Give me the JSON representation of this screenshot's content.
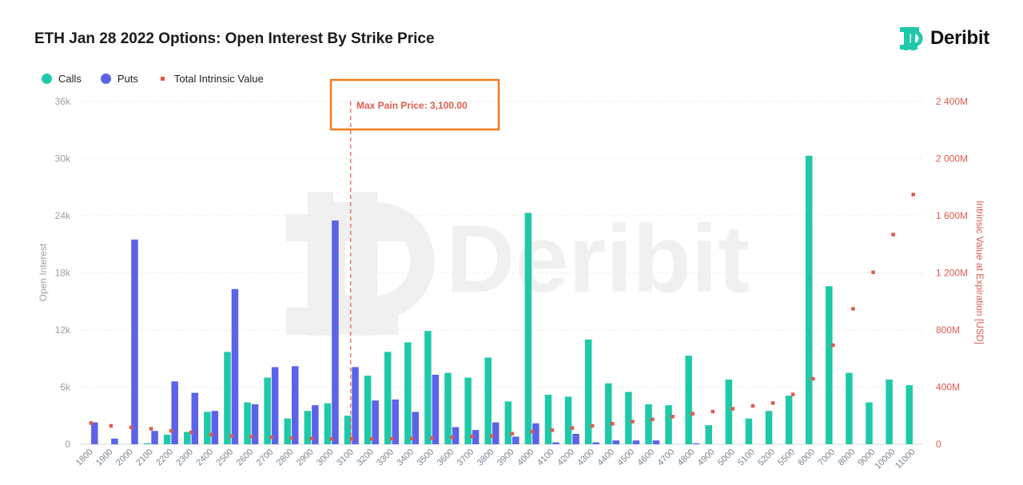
{
  "title": "ETH Jan 28 2022 Options: Open Interest By Strike Price",
  "logo": {
    "text": "Deribit",
    "icon": "deribit-logo-icon"
  },
  "watermark": "Deribit",
  "annotation": {
    "text": "Max Pain Price: 3,100.00",
    "strike": "3100"
  },
  "colors": {
    "calls": "#1ec9a8",
    "puts": "#5b63e8",
    "intrinsic": "#e05a4e",
    "annotation_box": "#f07a20",
    "axis_text": "#9aa0a6",
    "right_axis_text": "#e05a4e"
  },
  "chart_data": {
    "type": "bar",
    "categories": [
      "1800",
      "1900",
      "2000",
      "2100",
      "2200",
      "2300",
      "2400",
      "2500",
      "2600",
      "2700",
      "2800",
      "2900",
      "3000",
      "3100",
      "3200",
      "3300",
      "3400",
      "3500",
      "3600",
      "3700",
      "3800",
      "3900",
      "4000",
      "4100",
      "4200",
      "4300",
      "4400",
      "4500",
      "4600",
      "4700",
      "4800",
      "4900",
      "5000",
      "5100",
      "5200",
      "5500",
      "6000",
      "7000",
      "8000",
      "9000",
      "10000",
      "11000"
    ],
    "series": [
      {
        "name": "Calls",
        "axis": "left",
        "values": [
          0,
          0,
          0,
          100,
          1000,
          1300,
          3400,
          9700,
          4400,
          7000,
          2700,
          3500,
          4300,
          3000,
          7200,
          9700,
          10700,
          11900,
          7500,
          7000,
          9100,
          4500,
          24300,
          5200,
          5000,
          11000,
          6400,
          5500,
          4200,
          4100,
          9300,
          2000,
          6800,
          2700,
          3500,
          5100,
          30300,
          16600,
          7500,
          4400,
          6800,
          6200
        ]
      },
      {
        "name": "Puts",
        "axis": "left",
        "values": [
          2300,
          600,
          21500,
          1400,
          6600,
          5400,
          3500,
          16300,
          4200,
          8100,
          8200,
          4100,
          23500,
          8100,
          4600,
          4700,
          3400,
          7300,
          1800,
          1500,
          2300,
          800,
          2200,
          200,
          1100,
          200,
          400,
          400,
          400,
          0,
          100,
          0,
          0,
          0,
          0,
          0,
          0,
          0,
          0,
          0,
          0,
          0
        ]
      },
      {
        "name": "Total Intrinsic Value",
        "axis": "right",
        "marker": "square",
        "values": [
          150,
          130,
          120,
          110,
          95,
          85,
          70,
          60,
          55,
          50,
          45,
          42,
          40,
          40,
          40,
          40,
          42,
          45,
          50,
          55,
          60,
          75,
          90,
          100,
          115,
          130,
          145,
          160,
          175,
          195,
          215,
          230,
          250,
          270,
          290,
          350,
          460,
          695,
          950,
          1205,
          1470,
          1750
        ]
      }
    ],
    "left_axis": {
      "label": "Open Interest",
      "min": 0,
      "max": 36000,
      "ticks": [
        0,
        6000,
        12000,
        18000,
        24000,
        30000,
        36000
      ],
      "tick_labels": [
        "0",
        "6k",
        "12k",
        "18k",
        "24k",
        "30k",
        "36k"
      ]
    },
    "right_axis": {
      "label": "Intrinsic Value at Expiration [USD]",
      "min": 0,
      "max": 2400,
      "ticks": [
        0,
        400,
        800,
        1200,
        1600,
        2000,
        2400
      ],
      "tick_labels": [
        "0",
        "400M",
        "800M",
        "1 200M",
        "1 600M",
        "2 000M",
        "2 400M"
      ]
    },
    "grid": true,
    "legend": {
      "position": "top-left",
      "entries": [
        "Calls",
        "Puts",
        "Total Intrinsic Value"
      ]
    }
  }
}
